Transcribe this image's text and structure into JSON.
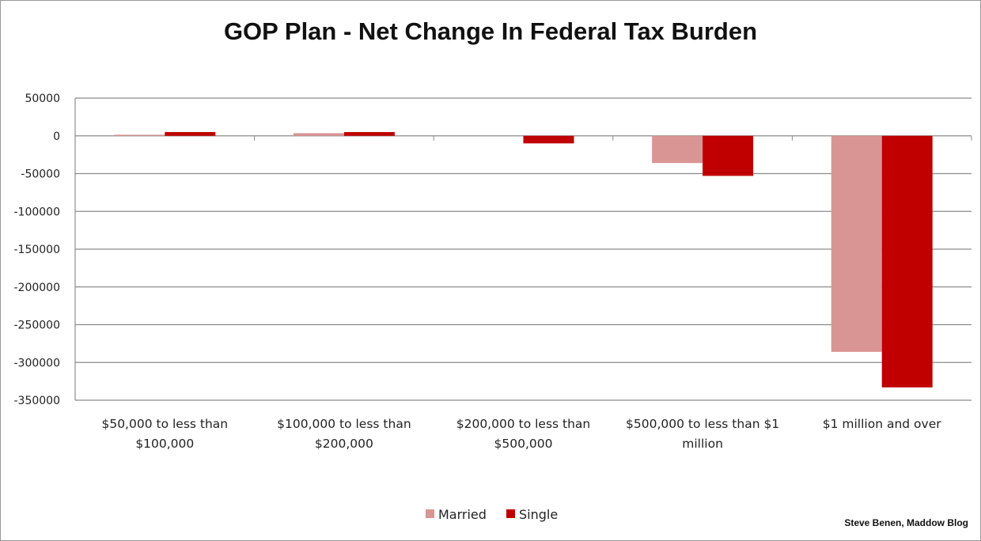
{
  "chart_data": {
    "type": "bar",
    "title": "GOP Plan - Net Change In Federal Tax Burden",
    "xlabel": "",
    "ylabel": "",
    "ylim": [
      -350000,
      50000
    ],
    "yticks": [
      50000,
      0,
      -50000,
      -100000,
      -150000,
      -200000,
      -250000,
      -300000,
      -350000
    ],
    "ytick_labels": [
      "50000",
      "0",
      "-50000",
      "-100000",
      "-150000",
      "-200000",
      "-250000",
      "-300000",
      "-350000"
    ],
    "categories": [
      [
        "$50,000 to less than",
        "$100,000"
      ],
      [
        "$100,000 to less than",
        "$200,000"
      ],
      [
        "$200,000 to less than",
        "$500,000"
      ],
      [
        "$500,000 to less than $1",
        "million"
      ],
      [
        "$1 million and over"
      ]
    ],
    "series": [
      {
        "name": "Married",
        "color": "#d99594",
        "values": [
          1500,
          3500,
          0,
          -36000,
          -286000
        ]
      },
      {
        "name": "Single",
        "color": "#c00000",
        "values": [
          5000,
          5000,
          -10000,
          -53000,
          -333000
        ]
      }
    ],
    "grid": true,
    "legend_position": "bottom-center",
    "credit": "Steve Benen, Maddow Blog"
  }
}
